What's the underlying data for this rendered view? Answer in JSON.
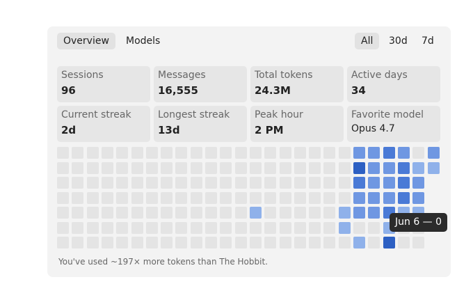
{
  "tabs": {
    "items": [
      "Overview",
      "Models"
    ],
    "active": 0
  },
  "ranges": {
    "items": [
      "All",
      "30d",
      "7d"
    ],
    "active": 0
  },
  "stats": [
    {
      "label": "Sessions",
      "value": "96"
    },
    {
      "label": "Messages",
      "value": "16,555"
    },
    {
      "label": "Total tokens",
      "value": "24.3M"
    },
    {
      "label": "Active days",
      "value": "34"
    },
    {
      "label": "Current streak",
      "value": "2d"
    },
    {
      "label": "Longest streak",
      "value": "13d"
    },
    {
      "label": "Peak hour",
      "value": "2 PM"
    },
    {
      "label": "Favorite model",
      "value": "Opus 4.7"
    }
  ],
  "heatmap": {
    "colors": [
      "#e4e4e4",
      "#8fb1ea",
      "#6f97e2",
      "#4a7ad6",
      "#2d60c3"
    ],
    "levels": [
      [
        0,
        0,
        0,
        0,
        0,
        0,
        0,
        0,
        0,
        0,
        0,
        0,
        0,
        0,
        0,
        0,
        0,
        0,
        0,
        0,
        2,
        2,
        3,
        2,
        0,
        2
      ],
      [
        0,
        0,
        0,
        0,
        0,
        0,
        0,
        0,
        0,
        0,
        0,
        0,
        0,
        0,
        0,
        0,
        0,
        0,
        0,
        0,
        4,
        2,
        2,
        3,
        1,
        1
      ],
      [
        0,
        0,
        0,
        0,
        0,
        0,
        0,
        0,
        0,
        0,
        0,
        0,
        0,
        0,
        0,
        0,
        0,
        0,
        0,
        0,
        3,
        2,
        2,
        3,
        2,
        null
      ],
      [
        0,
        0,
        0,
        0,
        0,
        0,
        0,
        0,
        0,
        0,
        0,
        0,
        0,
        0,
        0,
        0,
        0,
        0,
        0,
        0,
        2,
        2,
        2,
        3,
        2,
        null
      ],
      [
        0,
        0,
        0,
        0,
        0,
        0,
        0,
        0,
        0,
        0,
        0,
        0,
        0,
        1,
        0,
        0,
        0,
        0,
        0,
        1,
        2,
        2,
        3,
        1,
        1,
        null
      ],
      [
        0,
        0,
        0,
        0,
        0,
        0,
        0,
        0,
        0,
        0,
        0,
        0,
        0,
        0,
        0,
        0,
        0,
        0,
        0,
        1,
        0,
        0,
        1,
        0,
        0,
        null
      ],
      [
        0,
        0,
        0,
        0,
        0,
        0,
        0,
        0,
        0,
        0,
        0,
        0,
        0,
        0,
        0,
        0,
        0,
        0,
        0,
        0,
        1,
        0,
        4,
        0,
        0,
        null
      ]
    ]
  },
  "tooltip": "Jun 6 — 0",
  "footnote": "You've used ~197× more tokens than The Hobbit."
}
